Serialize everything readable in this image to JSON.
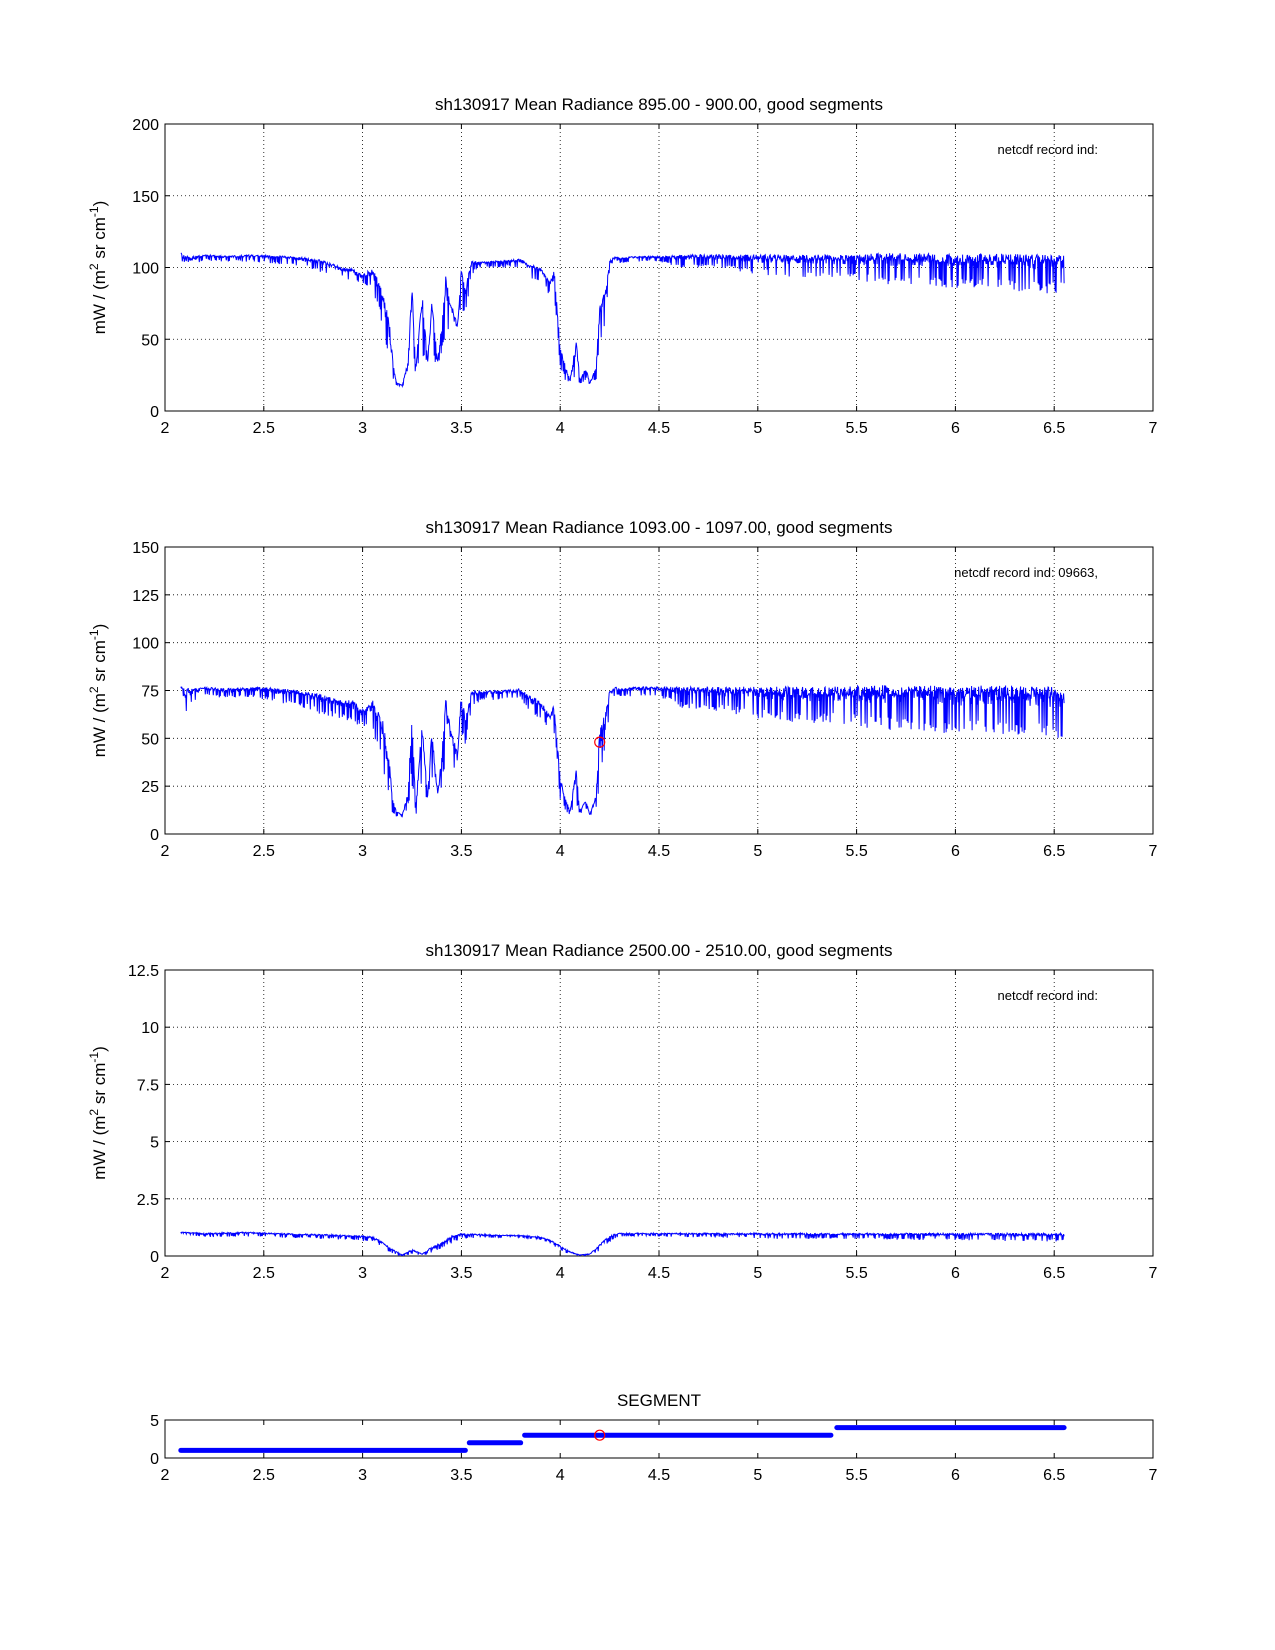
{
  "colors": {
    "series": "#0000ff",
    "marker": "#ff0000",
    "grid": "#000000",
    "background": "#ffffff"
  },
  "chart_data": [
    {
      "type": "line",
      "title": "sh130917 Mean Radiance 895.00 - 900.00, good segments",
      "xlabel": "",
      "ylabel": "mW / (m² sr cm⁻¹)",
      "ylabel_parts": {
        "base1": "mW / (m",
        "sup1": "2",
        "base2": " sr cm",
        "sup2": "-1",
        "base3": ")"
      },
      "annotation": "netcdf record ind:",
      "grid": true,
      "xlim": [
        2,
        7
      ],
      "ylim": [
        0,
        200
      ],
      "xticks": [
        2,
        2.5,
        3,
        3.5,
        4,
        4.5,
        5,
        5.5,
        6,
        6.5,
        7
      ],
      "xtick_labels": [
        "2",
        "2.5",
        "3",
        "3.5",
        "4",
        "4.5",
        "5",
        "5.5",
        "6",
        "6.5",
        "7"
      ],
      "yticks": [
        0,
        50,
        100,
        150,
        200
      ],
      "ytick_labels": [
        "0",
        "50",
        "100",
        "150",
        "200"
      ],
      "series": [
        {
          "x": [
            2.08,
            2.1,
            2.14,
            2.2,
            2.3,
            2.45,
            2.6,
            2.7,
            2.8,
            2.9,
            2.95,
            3.0,
            3.05,
            3.1,
            3.13,
            3.15,
            3.17,
            3.2,
            3.23,
            3.25,
            3.27,
            3.3,
            3.33,
            3.35,
            3.38,
            3.4,
            3.42,
            3.45,
            3.48,
            3.5,
            3.52,
            3.55,
            3.6,
            3.7,
            3.8,
            3.85,
            3.9,
            3.95,
            3.97,
            4.0,
            4.03,
            4.05,
            4.08,
            4.1,
            4.13,
            4.15,
            4.18,
            4.2,
            4.23,
            4.25,
            4.28,
            4.3,
            4.4,
            4.5,
            4.6,
            4.8,
            5.0,
            5.2,
            5.4,
            5.6,
            5.8,
            6.0,
            6.2,
            6.4,
            6.55
          ],
          "y": [
            110,
            109,
            108,
            109,
            108,
            109,
            108,
            107,
            105,
            100,
            99,
            95,
            100,
            85,
            70,
            40,
            20,
            18,
            35,
            90,
            30,
            85,
            35,
            80,
            35,
            60,
            95,
            75,
            60,
            100,
            85,
            105,
            104,
            105,
            106,
            102,
            100,
            90,
            100,
            45,
            30,
            22,
            50,
            22,
            30,
            20,
            30,
            75,
            85,
            105,
            108,
            107,
            108,
            108,
            109,
            109,
            109,
            109,
            109,
            110,
            110,
            109,
            110,
            109,
            109
          ],
          "ymin": [
            110,
            90,
            100,
            105,
            104,
            104,
            102,
            100,
            96,
            93,
            90,
            88,
            85,
            60,
            30,
            20,
            18,
            17,
            20,
            40,
            20,
            35,
            30,
            40,
            30,
            35,
            55,
            55,
            50,
            70,
            65,
            95,
            100,
            100,
            100,
            92,
            90,
            80,
            80,
            30,
            20,
            18,
            25,
            18,
            22,
            18,
            20,
            40,
            60,
            100,
            104,
            103,
            104,
            104,
            100,
            100,
            95,
            92,
            92,
            88,
            88,
            85,
            85,
            82,
            82
          ]
        }
      ]
    },
    {
      "type": "line",
      "title": "sh130917 Mean Radiance 1093.00 - 1097.00, good segments",
      "xlabel": "",
      "ylabel": "mW / (m² sr cm⁻¹)",
      "ylabel_parts": {
        "base1": "mW / (m",
        "sup1": "2",
        "base2": " sr cm",
        "sup2": "-1",
        "base3": ")"
      },
      "annotation": "netcdf record ind:  09663,",
      "grid": true,
      "xlim": [
        2,
        7
      ],
      "ylim": [
        0,
        150
      ],
      "xticks": [
        2,
        2.5,
        3,
        3.5,
        4,
        4.5,
        5,
        5.5,
        6,
        6.5,
        7
      ],
      "xtick_labels": [
        "2",
        "2.5",
        "3",
        "3.5",
        "4",
        "4.5",
        "5",
        "5.5",
        "6",
        "6.5",
        "7"
      ],
      "yticks": [
        0,
        25,
        50,
        75,
        100,
        125,
        150
      ],
      "ytick_labels": [
        "0",
        "25",
        "50",
        "75",
        "100",
        "125",
        "150"
      ],
      "marker": {
        "x": 4.2,
        "y": 48
      },
      "series": [
        {
          "x": [
            2.08,
            2.1,
            2.14,
            2.2,
            2.3,
            2.45,
            2.6,
            2.7,
            2.8,
            2.9,
            2.95,
            3.0,
            3.05,
            3.1,
            3.13,
            3.15,
            3.17,
            3.2,
            3.23,
            3.25,
            3.27,
            3.3,
            3.33,
            3.35,
            3.38,
            3.4,
            3.42,
            3.45,
            3.48,
            3.5,
            3.52,
            3.55,
            3.6,
            3.7,
            3.8,
            3.85,
            3.9,
            3.95,
            3.97,
            4.0,
            4.03,
            4.05,
            4.08,
            4.1,
            4.13,
            4.15,
            4.18,
            4.2,
            4.23,
            4.25,
            4.28,
            4.3,
            4.4,
            4.5,
            4.6,
            4.8,
            5.0,
            5.2,
            5.4,
            5.6,
            5.8,
            6.0,
            6.2,
            6.4,
            6.55
          ],
          "y": [
            77,
            76,
            76,
            77,
            76,
            77,
            76,
            75,
            73,
            70,
            70,
            65,
            70,
            60,
            45,
            20,
            12,
            10,
            22,
            65,
            15,
            60,
            20,
            55,
            22,
            40,
            72,
            55,
            42,
            75,
            60,
            75,
            75,
            75,
            76,
            72,
            70,
            62,
            68,
            30,
            18,
            12,
            35,
            12,
            18,
            10,
            20,
            55,
            65,
            75,
            77,
            76,
            77,
            77,
            77,
            77,
            77,
            77,
            77,
            78,
            78,
            77,
            78,
            77,
            77
          ],
          "ymin": [
            77,
            58,
            68,
            72,
            71,
            71,
            68,
            66,
            62,
            60,
            58,
            56,
            55,
            35,
            15,
            10,
            9,
            9,
            12,
            25,
            10,
            22,
            18,
            25,
            18,
            22,
            38,
            38,
            30,
            50,
            45,
            65,
            70,
            70,
            70,
            62,
            60,
            52,
            52,
            18,
            11,
            10,
            15,
            10,
            12,
            10,
            12,
            25,
            40,
            68,
            72,
            72,
            72,
            72,
            66,
            64,
            60,
            58,
            58,
            54,
            54,
            52,
            52,
            50,
            50
          ]
        }
      ]
    },
    {
      "type": "line",
      "title": "sh130917 Mean Radiance 2500.00 - 2510.00, good segments",
      "xlabel": "",
      "ylabel": "mW / (m² sr cm⁻¹)",
      "ylabel_parts": {
        "base1": "mW / (m",
        "sup1": "2",
        "base2": " sr cm",
        "sup2": "-1",
        "base3": ")"
      },
      "annotation": "netcdf record ind:",
      "grid": true,
      "xlim": [
        2,
        7
      ],
      "ylim": [
        0,
        12.5
      ],
      "xticks": [
        2,
        2.5,
        3,
        3.5,
        4,
        4.5,
        5,
        5.5,
        6,
        6.5,
        7
      ],
      "xtick_labels": [
        "2",
        "2.5",
        "3",
        "3.5",
        "4",
        "4.5",
        "5",
        "5.5",
        "6",
        "6.5",
        "7"
      ],
      "yticks": [
        0,
        2.5,
        5,
        7.5,
        10,
        12.5
      ],
      "ytick_labels": [
        "0",
        "2.5",
        "5",
        "7.5",
        "10",
        "12.5"
      ],
      "series": [
        {
          "x": [
            2.08,
            2.2,
            2.4,
            2.6,
            2.8,
            2.95,
            3.05,
            3.1,
            3.15,
            3.2,
            3.25,
            3.3,
            3.35,
            3.4,
            3.45,
            3.5,
            3.6,
            3.8,
            3.9,
            3.95,
            4.0,
            4.05,
            4.1,
            4.15,
            4.2,
            4.25,
            4.3,
            4.5,
            4.8,
            5.1,
            5.4,
            5.7,
            6.0,
            6.3,
            6.55
          ],
          "y": [
            1.05,
            1.0,
            1.05,
            1.0,
            0.95,
            0.9,
            0.85,
            0.6,
            0.3,
            0.05,
            0.3,
            0.1,
            0.4,
            0.6,
            0.9,
            1.0,
            0.95,
            0.9,
            0.85,
            0.7,
            0.45,
            0.2,
            0.05,
            0.1,
            0.5,
            0.9,
            1.0,
            1.0,
            1.0,
            1.0,
            1.0,
            1.0,
            1.0,
            1.0,
            1.0
          ],
          "ymin": [
            1.0,
            0.8,
            0.85,
            0.8,
            0.75,
            0.7,
            0.6,
            0.35,
            0.1,
            0.0,
            0.05,
            0.0,
            0.1,
            0.3,
            0.55,
            0.75,
            0.8,
            0.8,
            0.7,
            0.55,
            0.25,
            0.05,
            0.0,
            0.0,
            0.2,
            0.6,
            0.85,
            0.85,
            0.8,
            0.75,
            0.75,
            0.7,
            0.7,
            0.65,
            0.6
          ]
        }
      ]
    },
    {
      "type": "line",
      "title": "SEGMENT",
      "xlabel": "",
      "ylabel": "",
      "grid": false,
      "xlim": [
        2,
        7
      ],
      "ylim": [
        0,
        5
      ],
      "xticks": [
        2,
        2.5,
        3,
        3.5,
        4,
        4.5,
        5,
        5.5,
        6,
        6.5,
        7
      ],
      "xtick_labels": [
        "2",
        "2.5",
        "3",
        "3.5",
        "4",
        "4.5",
        "5",
        "5.5",
        "6",
        "6.5",
        "7"
      ],
      "yticks": [
        0,
        5
      ],
      "ytick_labels": [
        "0",
        "5"
      ],
      "marker": {
        "x": 4.2,
        "y": 3
      },
      "series": [
        {
          "x": [
            2.08,
            3.52
          ],
          "y": [
            1,
            1
          ]
        },
        {
          "x": [
            3.54,
            3.8
          ],
          "y": [
            2,
            2
          ]
        },
        {
          "x": [
            3.82,
            5.37
          ],
          "y": [
            3,
            3
          ]
        },
        {
          "x": [
            5.4,
            6.55
          ],
          "y": [
            4,
            4
          ]
        }
      ]
    }
  ]
}
